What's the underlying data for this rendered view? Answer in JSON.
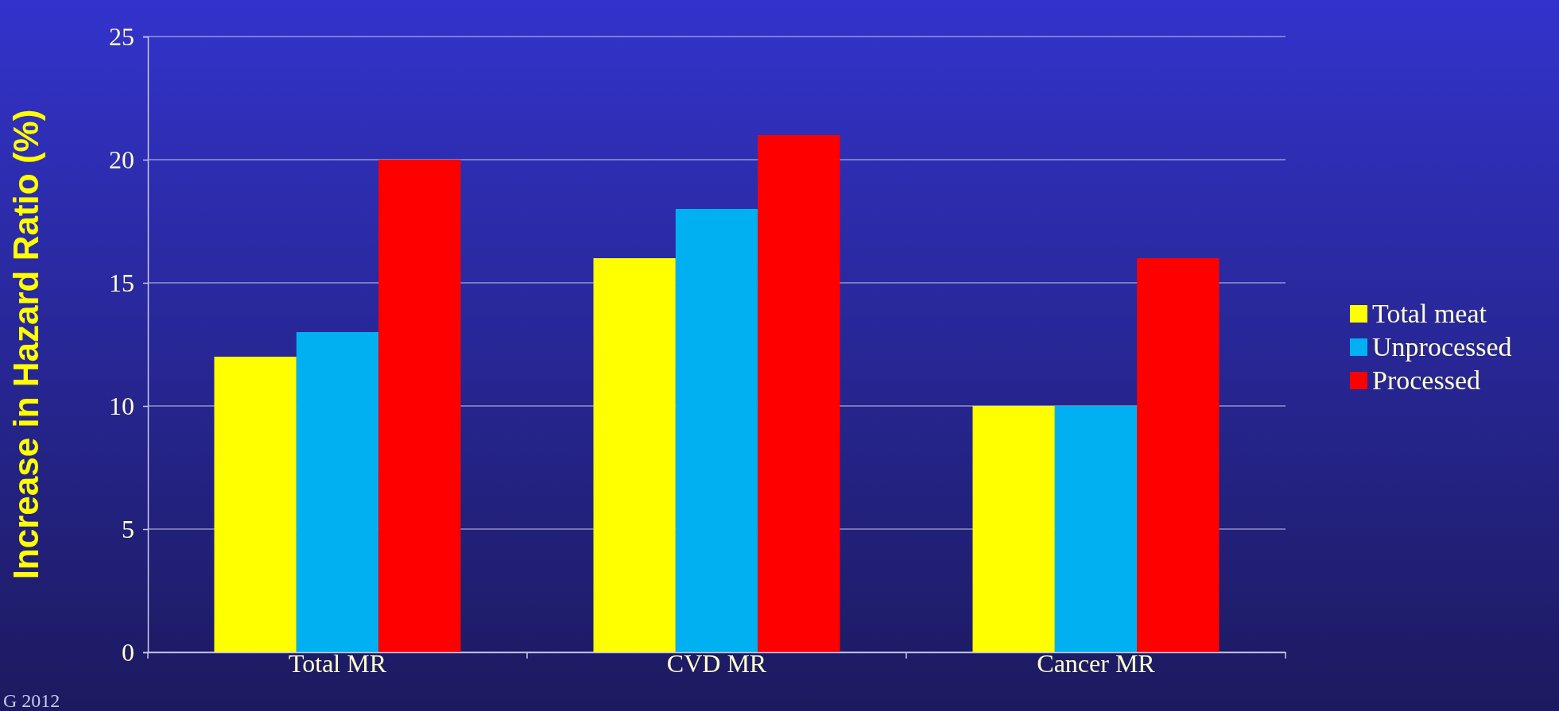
{
  "chart_data": {
    "type": "bar",
    "ylabel": "Increase in Hazard Ratio (%)",
    "categories": [
      "Total MR",
      "CVD MR",
      "Cancer MR"
    ],
    "series": [
      {
        "name": "Total meat",
        "color": "#ffff00",
        "values": [
          12,
          16,
          10
        ]
      },
      {
        "name": "Unprocessed",
        "color": "#00b0f0",
        "values": [
          13,
          18,
          10
        ]
      },
      {
        "name": "Processed",
        "color": "#ff0000",
        "values": [
          20,
          21,
          16
        ]
      }
    ],
    "ylim": [
      0,
      25
    ],
    "yticks": [
      0,
      5,
      10,
      15,
      20,
      25
    ],
    "grid": "y",
    "legend": "right",
    "annotations": [
      "G 2012"
    ]
  }
}
